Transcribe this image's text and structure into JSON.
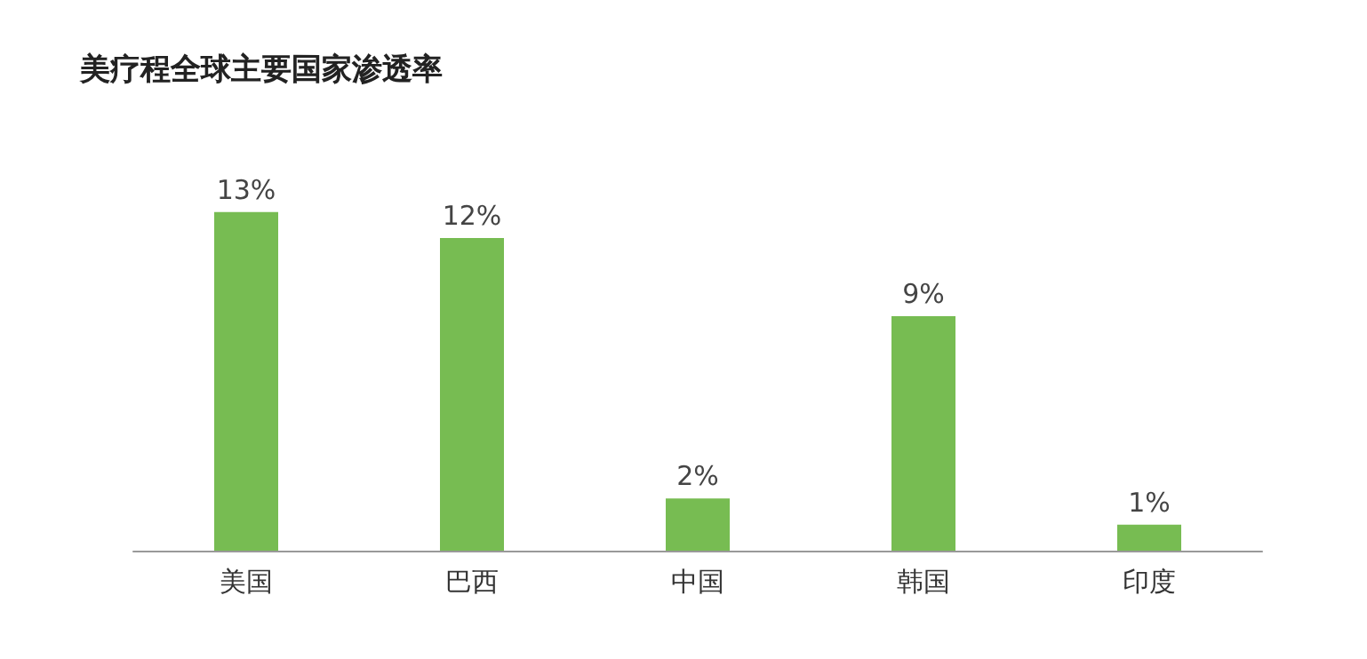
{
  "chart_data": {
    "type": "bar",
    "title": "美疗程全球主要国家渗透率",
    "categories": [
      "美国",
      "巴西",
      "中国",
      "韩国",
      "印度"
    ],
    "values": [
      13,
      12,
      2,
      9,
      1
    ],
    "value_labels": [
      "13%",
      "12%",
      "2%",
      "9%",
      "1%"
    ],
    "color": "#77bc52"
  }
}
